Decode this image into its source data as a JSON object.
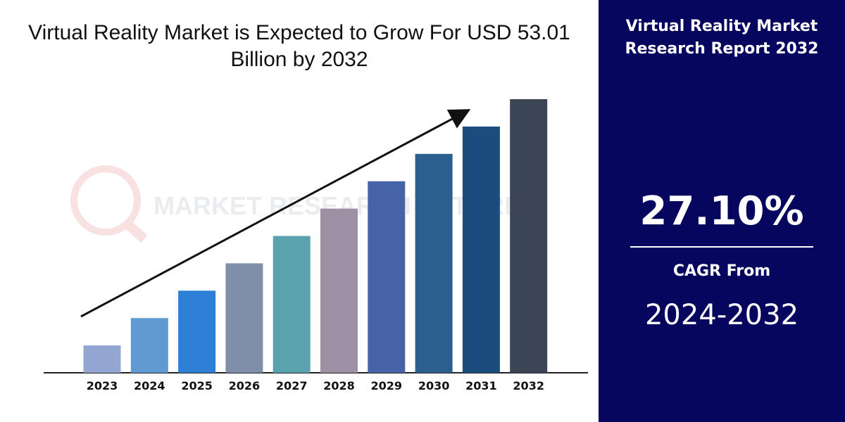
{
  "chart_data": {
    "type": "bar",
    "title": "Virtual Reality Market is Expected to Grow For USD 53.01 Billion by 2032",
    "categories": [
      "2023",
      "2024",
      "2025",
      "2026",
      "2027",
      "2028",
      "2029",
      "2030",
      "2031",
      "2032"
    ],
    "values": [
      1,
      2,
      3,
      4,
      5,
      6,
      7,
      8,
      9,
      10
    ],
    "colors": [
      "#93a6d2",
      "#5f9bd0",
      "#2e7fd6",
      "#7f8faa",
      "#5aa3ae",
      "#9e8fa4",
      "#4763a8",
      "#2c5f8d",
      "#1c4b80",
      "#3c4556"
    ],
    "xlabel": "",
    "ylabel": "",
    "grid": false,
    "trend_arrow": true
  },
  "panel": {
    "heading_line1": "Virtual Reality Market",
    "heading_line2": "Research Report 2032",
    "cagr_value": "27.10%",
    "cagr_label": "CAGR From",
    "period": "2024-2032",
    "background": "#06065e"
  },
  "watermark": {
    "text": "MARKET RESEARCH FUTURE"
  }
}
